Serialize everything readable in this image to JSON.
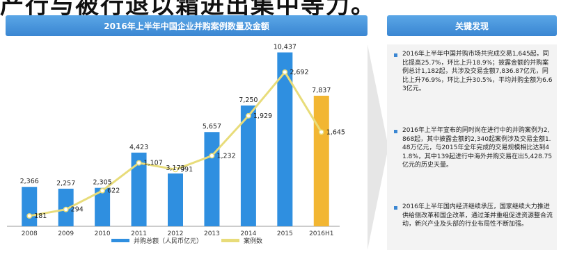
{
  "header": {
    "top_text": "产行与被行退以霜进出集中等力。",
    "chart_banner": "2016年上半年中国企业并购案例数量及金额",
    "right_banner": "关键发现"
  },
  "bullets": [
    "2016年上半年中国并购市场共完成交易1,645起，同比提高25.7%，环比上升18.9%；披露金额的并购案例总计1,182起，共涉及交易金额7,836.87亿元，同比上升76.9%，环比上升30.5%，平均并购金额为6.63亿元。",
    "2016年上半年宣布的同时尚在进行中的并购案例为2,868起，其中披露金额的2,340起案例涉及交易金额1.48万亿元，与2015年全年完成的交易规模相比达到41.8%，其中139起进行中海外并购交易在出5,428.75亿元的历史天量。",
    "2016年上半年国内经济继续承压，国家继续大力推进供给侧改革和国企改革，通过兼并重组促进资源整合流动，新兴产业及头部的行业布局性不断加强。"
  ],
  "colors": {
    "bar": "#2f8fe0",
    "bar_highlight": "#f2b632",
    "line": "#e8dc7a",
    "banner": "#3a86d2"
  },
  "chart_data": {
    "type": "bar",
    "categories": [
      "2008",
      "2009",
      "2010",
      "2011",
      "2012",
      "2013",
      "2014",
      "2015",
      "2016H1"
    ],
    "series": [
      {
        "name": "并购总额（人民币亿元）",
        "type": "bar",
        "values": [
          2366,
          2257,
          2305,
          4423,
          3173,
          5657,
          7250,
          10437,
          7837
        ],
        "labels": [
          "2,366",
          "2,257",
          "2,305",
          "4,423",
          "3,173",
          "5,657",
          "7,250",
          "10,437",
          "7,837"
        ]
      },
      {
        "name": "案例数",
        "type": "line",
        "values": [
          181,
          294,
          622,
          1107,
          991,
          1232,
          1929,
          2692,
          1645
        ],
        "labels": [
          "181",
          "294",
          "622",
          "1,107",
          "991",
          "1,232",
          "1,929",
          "2,692",
          "1,645"
        ]
      }
    ],
    "highlight_index": 8,
    "bar_ylim": [
      0,
      11000
    ],
    "line_ylim": [
      0,
      3200
    ],
    "legend": "bottom"
  }
}
